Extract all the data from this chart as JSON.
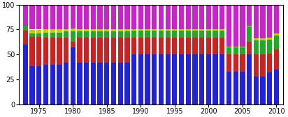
{
  "years": [
    1973,
    1974,
    1975,
    1976,
    1977,
    1978,
    1979,
    1980,
    1981,
    1982,
    1983,
    1984,
    1985,
    1986,
    1987,
    1988,
    1989,
    1990,
    1991,
    1992,
    1993,
    1994,
    1995,
    1996,
    1997,
    1998,
    1999,
    2000,
    2001,
    2002,
    2003,
    2004,
    2005,
    2006,
    2007,
    2008,
    2009,
    2010
  ],
  "stang": [
    60,
    38,
    38,
    40,
    40,
    40,
    42,
    57,
    42,
    42,
    42,
    42,
    42,
    42,
    42,
    42,
    50,
    50,
    50,
    50,
    50,
    50,
    50,
    50,
    50,
    50,
    50,
    50,
    50,
    50,
    33,
    33,
    33,
    50,
    28,
    28,
    32,
    35
  ],
  "stengsel": [
    14,
    30,
    30,
    27,
    27,
    27,
    25,
    6,
    25,
    25,
    25,
    25,
    25,
    25,
    25,
    25,
    17,
    17,
    17,
    17,
    17,
    17,
    17,
    17,
    17,
    17,
    17,
    17,
    17,
    17,
    17,
    17,
    17,
    13,
    22,
    22,
    19,
    20
  ],
  "stagarn": [
    5,
    3,
    3,
    5,
    5,
    5,
    6,
    10,
    6,
    6,
    6,
    6,
    6,
    6,
    6,
    6,
    7,
    7,
    7,
    7,
    7,
    7,
    7,
    7,
    7,
    7,
    7,
    7,
    7,
    7,
    7,
    7,
    7,
    15,
    14,
    14,
    14,
    14
  ],
  "drivgarn": [
    0,
    4,
    4,
    3,
    3,
    3,
    2,
    3,
    2,
    2,
    2,
    2,
    2,
    2,
    2,
    2,
    1,
    1,
    1,
    1,
    1,
    1,
    1,
    1,
    1,
    1,
    1,
    1,
    1,
    1,
    1,
    1,
    1,
    1,
    2,
    2,
    2,
    2
  ],
  "stengsel_stagarn": [
    21,
    25,
    25,
    25,
    25,
    25,
    25,
    24,
    25,
    25,
    25,
    25,
    25,
    25,
    25,
    25,
    25,
    25,
    25,
    25,
    25,
    25,
    25,
    25,
    25,
    25,
    25,
    25,
    25,
    25,
    42,
    42,
    42,
    21,
    34,
    34,
    33,
    29
  ],
  "colors": {
    "stang": "#2222dd",
    "stengsel": "#cc2222",
    "stagarn": "#22aa22",
    "drivgarn": "#cccc00",
    "stengsel_stagarn": "#cc22cc"
  },
  "ylim": [
    0,
    100
  ],
  "yticks": [
    0,
    25,
    50,
    75,
    100
  ],
  "xtick_years": [
    1975,
    1980,
    1985,
    1990,
    1995,
    2000,
    2005,
    2010
  ],
  "background_color": "#ffffff",
  "bar_width": 0.75
}
